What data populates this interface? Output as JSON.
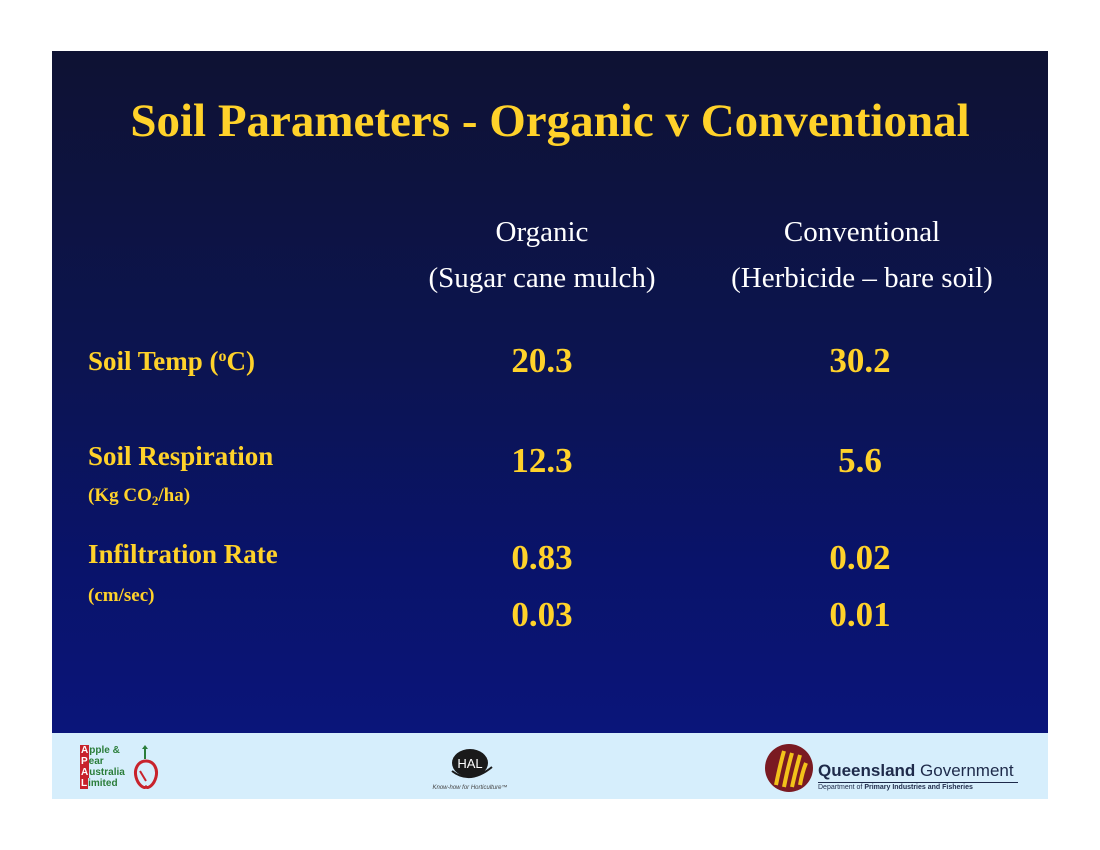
{
  "slide": {
    "title": "Soil Parameters - Organic v Conventional",
    "columns": [
      {
        "name": "Organic",
        "detail": "(Sugar cane mulch)"
      },
      {
        "name": "Conventional",
        "detail": "(Herbicide – bare soil)"
      }
    ],
    "rows": {
      "soil_temp": {
        "label_pre": "Soil Temp (",
        "label_sup": "o",
        "label_post": "C)",
        "organic": "20.3",
        "conventional": "30.2"
      },
      "soil_respiration": {
        "label": "Soil Respiration",
        "unit_pre": "(Kg CO",
        "unit_sub": "2",
        "unit_post": "/ha)",
        "organic": "12.3",
        "conventional": "5.6"
      },
      "infiltration_rate": {
        "label": "Infiltration Rate",
        "unit": "(cm/sec)",
        "organic": [
          "0.83",
          "0.03"
        ],
        "conventional": [
          "0.02",
          "0.01"
        ]
      }
    }
  },
  "footer": {
    "apal": {
      "lines": [
        {
          "initial": "A",
          "rest": "pple &"
        },
        {
          "initial": "P",
          "rest": "ear"
        },
        {
          "initial": "A",
          "rest": "ustralia"
        },
        {
          "initial": "L",
          "rest": "imited"
        }
      ]
    },
    "hal": {
      "mark": "HAL",
      "tagline": "Know-how for Horticulture™"
    },
    "qld": {
      "name_bold": "Queensland",
      "name_rest": " Government",
      "dept_pre": "Department of ",
      "dept_bold": "Primary Industries and Fisheries"
    }
  },
  "colors": {
    "title_yellow": "#ffd22a",
    "background_navy": "#0c1450",
    "footer_blue": "#d6eefc"
  }
}
